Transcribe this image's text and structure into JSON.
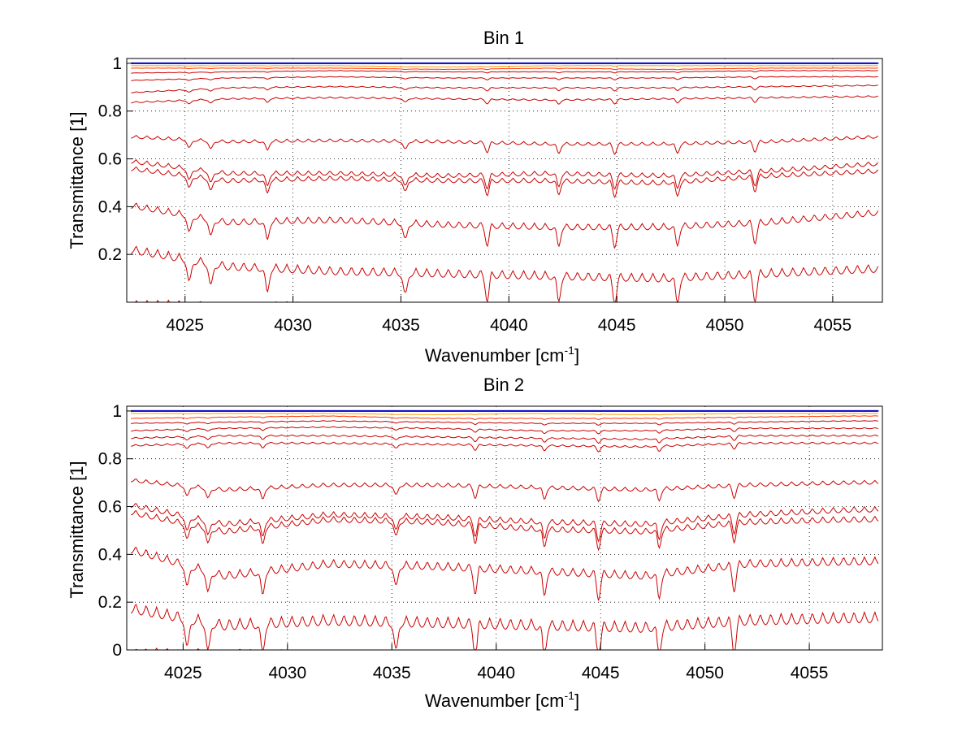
{
  "chart_data": [
    {
      "type": "line",
      "title": "Bin 1",
      "xlabel": "Wavenumber [cm",
      "xlabel_sup": "-1",
      "xlabel_end": "]",
      "ylabel": "Transmittance [1]",
      "xlim": [
        4022.3,
        4057.3
      ],
      "ylim": [
        0,
        1.02
      ],
      "xticks": [
        4025,
        4030,
        4035,
        4040,
        4045,
        4050,
        4055
      ],
      "yticks": [
        0.2,
        0.4,
        0.6,
        0.8,
        1
      ],
      "grid": true,
      "line_color": "#cc0000",
      "series": [
        {
          "values": [
            1.0,
            1.0,
            1.0,
            1.0,
            1.0,
            1.0,
            1.0,
            1.0
          ],
          "color": "#0000cc"
        },
        {
          "values": [
            0.99,
            0.99,
            0.99,
            0.985,
            0.99,
            0.99,
            0.99,
            0.99
          ],
          "color": "#ff9900"
        },
        {
          "values": [
            0.98,
            0.98,
            0.98,
            0.975,
            0.98,
            0.975,
            0.98,
            0.98
          ],
          "color": "#ff3300"
        },
        {
          "values": [
            0.96,
            0.965,
            0.97,
            0.965,
            0.965,
            0.965,
            0.97,
            0.97
          ],
          "color": "#cc0000"
        },
        {
          "values": [
            0.93,
            0.94,
            0.945,
            0.94,
            0.94,
            0.94,
            0.945,
            0.945
          ],
          "color": "#cc0000"
        },
        {
          "values": [
            0.88,
            0.9,
            0.905,
            0.9,
            0.9,
            0.9,
            0.905,
            0.91
          ],
          "color": "#cc0000"
        },
        {
          "values": [
            0.84,
            0.855,
            0.86,
            0.855,
            0.85,
            0.855,
            0.86,
            0.865
          ],
          "color": "#cc0000"
        },
        {
          "values": [
            0.7,
            0.68,
            0.685,
            0.68,
            0.67,
            0.67,
            0.68,
            0.7
          ],
          "color": "#cc0000"
        },
        {
          "values": [
            0.6,
            0.55,
            0.55,
            0.54,
            0.55,
            0.54,
            0.56,
            0.59
          ],
          "color": "#cc0000"
        },
        {
          "values": [
            0.57,
            0.52,
            0.53,
            0.52,
            0.52,
            0.51,
            0.54,
            0.56
          ],
          "color": "#cc0000"
        },
        {
          "values": [
            0.42,
            0.35,
            0.36,
            0.34,
            0.33,
            0.33,
            0.35,
            0.39
          ],
          "color": "#cc0000"
        },
        {
          "values": [
            0.24,
            0.17,
            0.15,
            0.14,
            0.13,
            0.12,
            0.14,
            0.16
          ],
          "color": "#cc0000"
        },
        {
          "values": [
            0.01,
            0.005,
            0.0,
            0.0,
            0.0,
            0.0,
            0.0,
            0.0
          ],
          "color": "#cc0000"
        }
      ],
      "x_points": [
        4022.5,
        4027,
        4032,
        4037,
        4042,
        4047,
        4052,
        4057
      ]
    },
    {
      "type": "line",
      "title": "Bin 2",
      "xlabel": "Wavenumber [cm",
      "xlabel_sup": "-1",
      "xlabel_end": "]",
      "ylabel": "Transmittance [1]",
      "xlim": [
        4022.3,
        4058.5
      ],
      "ylim": [
        0,
        1.02
      ],
      "xticks": [
        4025,
        4030,
        4035,
        4040,
        4045,
        4050,
        4055
      ],
      "yticks": [
        0,
        0.2,
        0.4,
        0.6,
        0.8,
        1
      ],
      "grid": true,
      "line_color": "#cc0000",
      "series": [
        {
          "values": [
            1.0,
            1.0,
            1.0,
            1.0,
            1.0,
            1.0,
            1.0,
            1.0
          ],
          "color": "#0000cc"
        },
        {
          "values": [
            0.99,
            0.99,
            0.99,
            0.985,
            0.99,
            0.985,
            0.99,
            0.99
          ],
          "color": "#ff9900"
        },
        {
          "values": [
            0.97,
            0.975,
            0.98,
            0.97,
            0.97,
            0.97,
            0.975,
            0.98
          ],
          "color": "#ff3300"
        },
        {
          "values": [
            0.95,
            0.955,
            0.96,
            0.955,
            0.95,
            0.95,
            0.955,
            0.96
          ],
          "color": "#cc0000"
        },
        {
          "values": [
            0.92,
            0.93,
            0.935,
            0.93,
            0.92,
            0.92,
            0.93,
            0.93
          ],
          "color": "#cc0000"
        },
        {
          "values": [
            0.89,
            0.9,
            0.9,
            0.895,
            0.89,
            0.885,
            0.9,
            0.9
          ],
          "color": "#cc0000"
        },
        {
          "values": [
            0.86,
            0.87,
            0.87,
            0.865,
            0.86,
            0.855,
            0.87,
            0.87
          ],
          "color": "#cc0000"
        },
        {
          "values": [
            0.72,
            0.68,
            0.7,
            0.7,
            0.69,
            0.68,
            0.7,
            0.71
          ],
          "color": "#cc0000"
        },
        {
          "values": [
            0.62,
            0.54,
            0.58,
            0.57,
            0.55,
            0.54,
            0.58,
            0.6
          ],
          "color": "#cc0000"
        },
        {
          "values": [
            0.59,
            0.51,
            0.56,
            0.55,
            0.52,
            0.51,
            0.55,
            0.56
          ],
          "color": "#cc0000"
        },
        {
          "values": [
            0.44,
            0.33,
            0.38,
            0.37,
            0.35,
            0.33,
            0.38,
            0.39
          ],
          "color": "#cc0000"
        },
        {
          "values": [
            0.2,
            0.13,
            0.15,
            0.14,
            0.13,
            0.12,
            0.15,
            0.16
          ],
          "color": "#cc0000"
        },
        {
          "values": [
            0.01,
            0.005,
            0.0,
            0.0,
            0.0,
            0.0,
            0.0,
            0.0
          ],
          "color": "#cc0000"
        }
      ],
      "x_points": [
        4022.5,
        4027,
        4032,
        4037,
        4042,
        4047,
        4052,
        4057
      ]
    }
  ]
}
